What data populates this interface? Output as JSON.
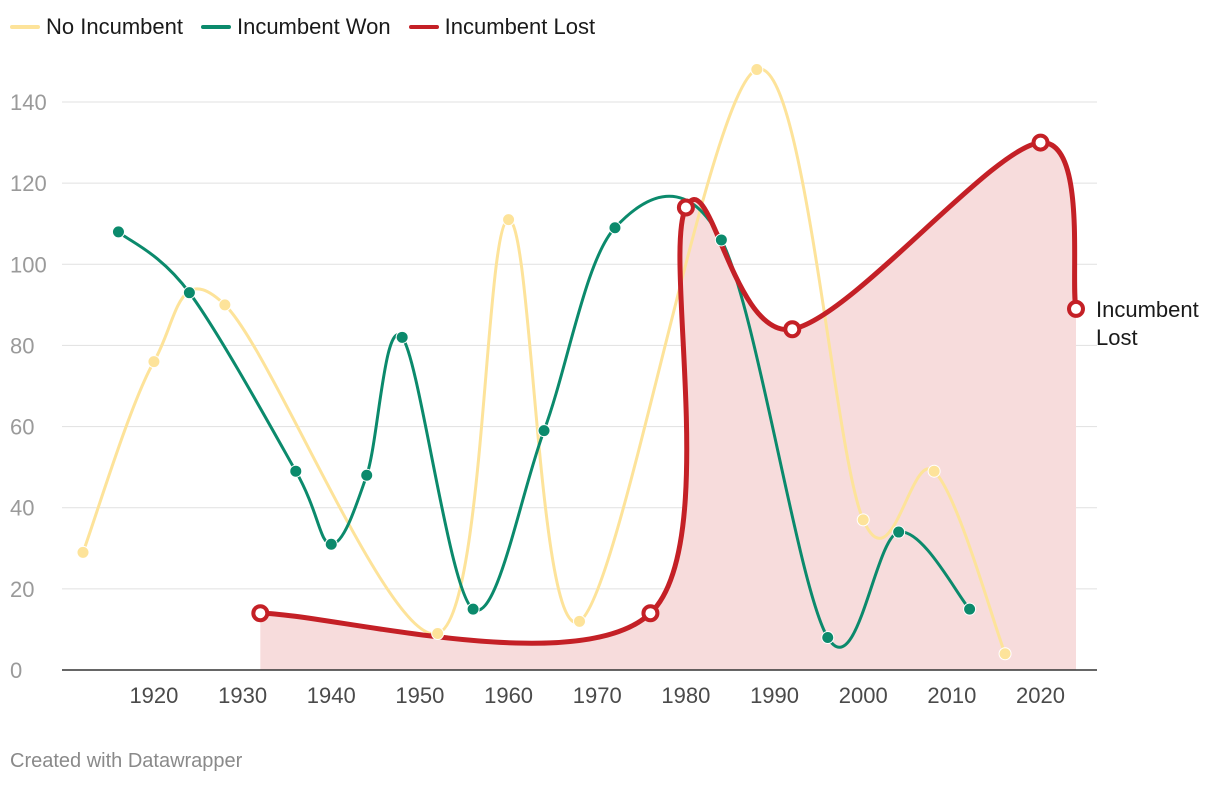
{
  "legend": {
    "items": [
      {
        "label": "No Incumbent",
        "color": "#fde39a"
      },
      {
        "label": "Incumbent Won",
        "color": "#0b8a6c"
      },
      {
        "label": "Incumbent Lost",
        "color": "#c42026"
      }
    ]
  },
  "footer": "Created with Datawrapper",
  "chart_data": {
    "type": "line",
    "title": "",
    "xlabel": "",
    "ylabel": "",
    "xlim": [
      1911,
      2026
    ],
    "ylim": [
      0,
      150
    ],
    "x_ticks": [
      1920,
      1930,
      1940,
      1950,
      1960,
      1970,
      1980,
      1990,
      2000,
      2010,
      2020
    ],
    "y_ticks": [
      0,
      20,
      40,
      60,
      80,
      100,
      120,
      140
    ],
    "grid": true,
    "legend_position": "top-left",
    "series": [
      {
        "name": "No Incumbent",
        "color": "#fde39a",
        "x": [
          1912,
          1920,
          1928,
          1952,
          1960,
          1968,
          1988,
          2000,
          2008,
          2016
        ],
        "y": [
          29,
          76,
          90,
          9,
          111,
          12,
          148,
          37,
          49,
          4
        ]
      },
      {
        "name": "Incumbent Won",
        "color": "#0b8a6c",
        "x": [
          1916,
          1924,
          1936,
          1940,
          1944,
          1948,
          1956,
          1964,
          1972,
          1984,
          1996,
          2004,
          2012
        ],
        "y": [
          108,
          93,
          49,
          31,
          48,
          82,
          15,
          59,
          109,
          106,
          8,
          34,
          15
        ]
      },
      {
        "name": "Incumbent Lost",
        "color": "#c42026",
        "x": [
          1932,
          1976,
          1980,
          1992,
          2020,
          2024
        ],
        "y": [
          14,
          14,
          114,
          84,
          130,
          89
        ]
      }
    ],
    "annotations": [
      {
        "text_lines": [
          "Incumbent",
          "Lost"
        ],
        "x": 2024,
        "y": 89
      }
    ]
  }
}
